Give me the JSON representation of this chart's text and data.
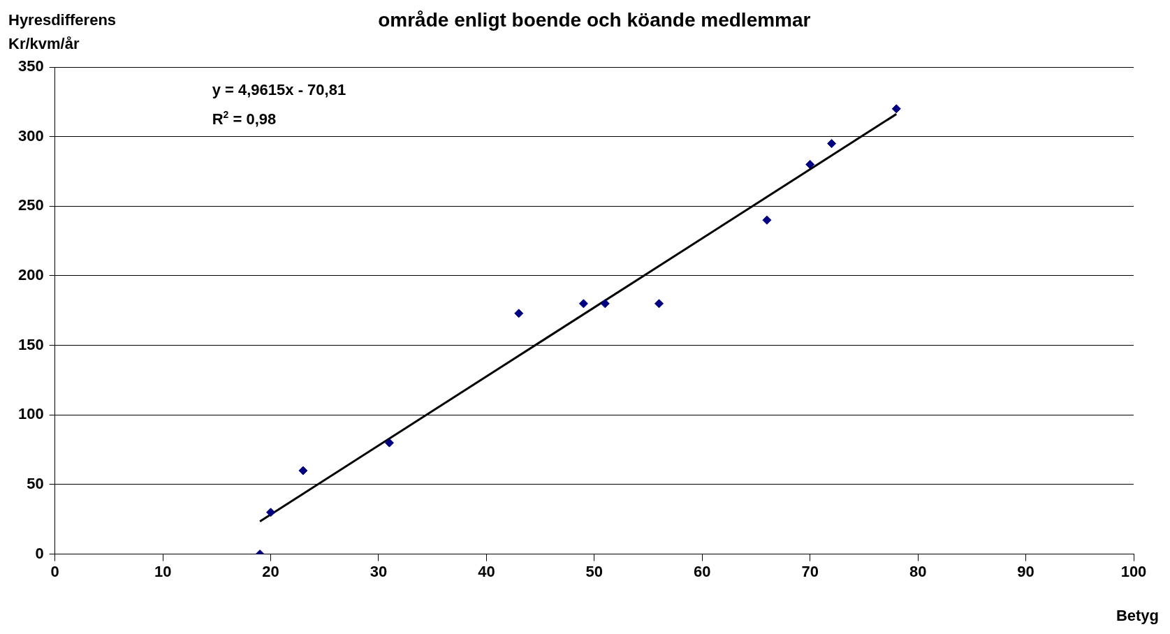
{
  "chart_data": {
    "type": "scatter",
    "title": "område enligt boende och köande medlemmar",
    "xlabel": "Betyg",
    "ylabel": "Hyresdifferens Kr/kvm/år",
    "annotations": [
      "y = 4,9615x - 70,81",
      "R$^{2}$ = 0,98"
    ],
    "series": [
      {
        "color": "#000080",
        "marker": "diamond",
        "x": [
          19,
          20,
          23,
          31,
          43,
          49,
          51,
          56,
          66,
          70,
          72,
          78
        ],
        "values": [
          0,
          30,
          60,
          80,
          173,
          180,
          180,
          180,
          240,
          280,
          295,
          320
        ]
      },
      {
        "type": "line",
        "color": "#000000",
        "marker": "none",
        "x": [
          19,
          78
        ],
        "values": [
          23.5,
          316.2
        ]
      }
    ],
    "xlim": [
      0,
      100
    ],
    "xticks": [
      0,
      10,
      20,
      30,
      40,
      50,
      60,
      70,
      80,
      90,
      100
    ],
    "ylim": [
      0,
      350
    ],
    "yticks": [
      0,
      50,
      100,
      150,
      200,
      250,
      300,
      350
    ],
    "grid": "y",
    "legend": false,
    "line_style": "solid"
  }
}
